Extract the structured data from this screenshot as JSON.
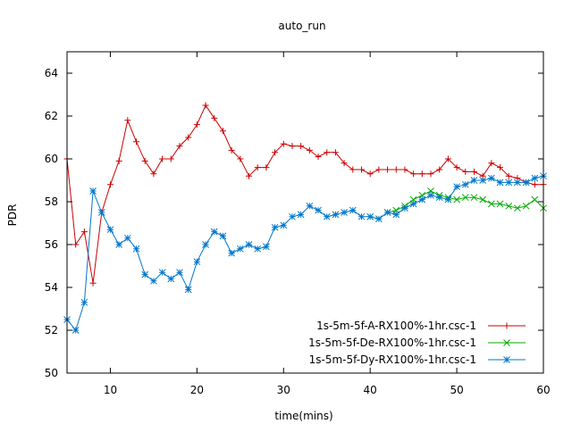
{
  "chart_data": {
    "type": "line",
    "title": "auto_run",
    "xlabel": "time(mins)",
    "ylabel": "PDR",
    "xlim": [
      5,
      60
    ],
    "ylim": [
      50,
      65
    ],
    "xticks": [
      10,
      20,
      30,
      40,
      50,
      60
    ],
    "yticks": [
      50,
      52,
      54,
      56,
      58,
      60,
      62,
      64
    ],
    "grid": false,
    "legend_position": "bottom-right",
    "series": [
      {
        "name": "1s-5m-5f-A-RX100%-1hr.csc-1",
        "color": "#cc0000",
        "marker": "plus",
        "points": [
          [
            5,
            60.0
          ],
          [
            6,
            56.0
          ],
          [
            7,
            56.6
          ],
          [
            8,
            54.2
          ],
          [
            9,
            57.5
          ],
          [
            10,
            58.8
          ],
          [
            11,
            59.9
          ],
          [
            12,
            61.8
          ],
          [
            13,
            60.8
          ],
          [
            14,
            59.9
          ],
          [
            15,
            59.3
          ],
          [
            16,
            60.0
          ],
          [
            17,
            60.0
          ],
          [
            18,
            60.6
          ],
          [
            19,
            61.0
          ],
          [
            20,
            61.6
          ],
          [
            21,
            62.5
          ],
          [
            22,
            61.9
          ],
          [
            23,
            61.3
          ],
          [
            24,
            60.4
          ],
          [
            25,
            60.0
          ],
          [
            26,
            59.2
          ],
          [
            27,
            59.6
          ],
          [
            28,
            59.6
          ],
          [
            29,
            60.3
          ],
          [
            30,
            60.7
          ],
          [
            31,
            60.6
          ],
          [
            32,
            60.6
          ],
          [
            33,
            60.4
          ],
          [
            34,
            60.1
          ],
          [
            35,
            60.3
          ],
          [
            36,
            60.3
          ],
          [
            37,
            59.8
          ],
          [
            38,
            59.5
          ],
          [
            39,
            59.5
          ],
          [
            40,
            59.3
          ],
          [
            41,
            59.5
          ],
          [
            42,
            59.5
          ],
          [
            43,
            59.5
          ],
          [
            44,
            59.5
          ],
          [
            45,
            59.3
          ],
          [
            46,
            59.3
          ],
          [
            47,
            59.3
          ],
          [
            48,
            59.5
          ],
          [
            49,
            60.0
          ],
          [
            50,
            59.6
          ],
          [
            51,
            59.4
          ],
          [
            52,
            59.4
          ],
          [
            53,
            59.2
          ],
          [
            54,
            59.8
          ],
          [
            55,
            59.6
          ],
          [
            56,
            59.2
          ],
          [
            57,
            59.1
          ],
          [
            58,
            58.9
          ],
          [
            59,
            58.8
          ],
          [
            60,
            58.8
          ]
        ]
      },
      {
        "name": "1s-5m-5f-De-RX100%-1hr.csc-1",
        "color": "#00aa00",
        "marker": "cross",
        "points": [
          [
            40,
            57.3
          ],
          [
            41,
            57.2
          ],
          [
            42,
            57.5
          ],
          [
            43,
            57.6
          ],
          [
            44,
            57.8
          ],
          [
            45,
            58.1
          ],
          [
            46,
            58.3
          ],
          [
            47,
            58.5
          ],
          [
            48,
            58.3
          ],
          [
            49,
            58.2
          ],
          [
            50,
            58.1
          ],
          [
            51,
            58.2
          ],
          [
            52,
            58.2
          ],
          [
            53,
            58.1
          ],
          [
            54,
            57.9
          ],
          [
            55,
            57.9
          ],
          [
            56,
            57.8
          ],
          [
            57,
            57.7
          ],
          [
            58,
            57.8
          ],
          [
            59,
            58.1
          ],
          [
            60,
            57.7
          ]
        ]
      },
      {
        "name": "1s-5m-5f-Dy-RX100%-1hr.csc-1",
        "color": "#0077cc",
        "marker": "star",
        "points": [
          [
            5,
            52.5
          ],
          [
            6,
            52.0
          ],
          [
            7,
            53.3
          ],
          [
            8,
            58.5
          ],
          [
            9,
            57.5
          ],
          [
            10,
            56.7
          ],
          [
            11,
            56.0
          ],
          [
            12,
            56.3
          ],
          [
            13,
            55.8
          ],
          [
            14,
            54.6
          ],
          [
            15,
            54.3
          ],
          [
            16,
            54.7
          ],
          [
            17,
            54.4
          ],
          [
            18,
            54.7
          ],
          [
            19,
            53.9
          ],
          [
            20,
            55.2
          ],
          [
            21,
            56.0
          ],
          [
            22,
            56.6
          ],
          [
            23,
            56.4
          ],
          [
            24,
            55.6
          ],
          [
            25,
            55.8
          ],
          [
            26,
            56.0
          ],
          [
            27,
            55.8
          ],
          [
            28,
            55.9
          ],
          [
            29,
            56.8
          ],
          [
            30,
            56.9
          ],
          [
            31,
            57.3
          ],
          [
            32,
            57.4
          ],
          [
            33,
            57.8
          ],
          [
            34,
            57.6
          ],
          [
            35,
            57.3
          ],
          [
            36,
            57.4
          ],
          [
            37,
            57.5
          ],
          [
            38,
            57.6
          ],
          [
            39,
            57.3
          ],
          [
            40,
            57.3
          ],
          [
            41,
            57.2
          ],
          [
            42,
            57.5
          ],
          [
            43,
            57.4
          ],
          [
            44,
            57.7
          ],
          [
            45,
            57.9
          ],
          [
            46,
            58.1
          ],
          [
            47,
            58.3
          ],
          [
            48,
            58.2
          ],
          [
            49,
            58.1
          ],
          [
            50,
            58.7
          ],
          [
            51,
            58.8
          ],
          [
            52,
            59.0
          ],
          [
            53,
            59.0
          ],
          [
            54,
            59.1
          ],
          [
            55,
            58.9
          ],
          [
            56,
            58.9
          ],
          [
            57,
            58.9
          ],
          [
            58,
            58.9
          ],
          [
            59,
            59.1
          ],
          [
            60,
            59.2
          ]
        ]
      }
    ]
  }
}
